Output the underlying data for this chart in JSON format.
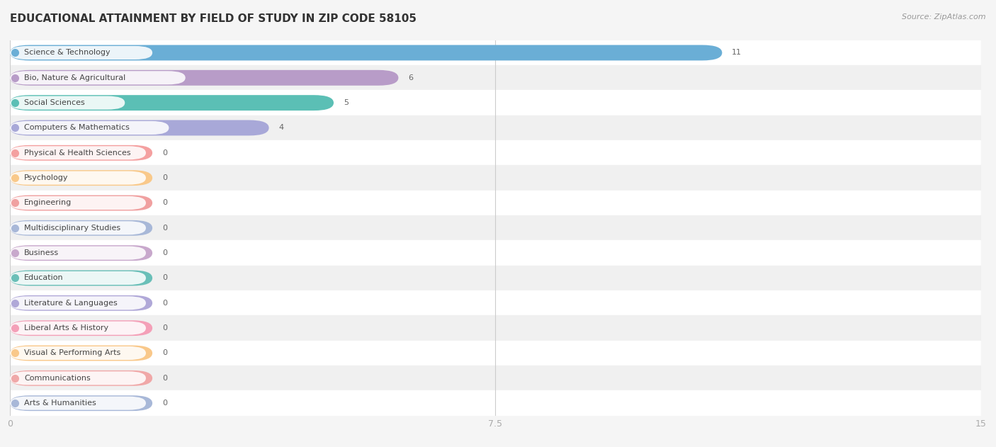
{
  "title": "EDUCATIONAL ATTAINMENT BY FIELD OF STUDY IN ZIP CODE 58105",
  "source": "Source: ZipAtlas.com",
  "categories": [
    "Science & Technology",
    "Bio, Nature & Agricultural",
    "Social Sciences",
    "Computers & Mathematics",
    "Physical & Health Sciences",
    "Psychology",
    "Engineering",
    "Multidisciplinary Studies",
    "Business",
    "Education",
    "Literature & Languages",
    "Liberal Arts & History",
    "Visual & Performing Arts",
    "Communications",
    "Arts & Humanities"
  ],
  "values": [
    11,
    6,
    5,
    4,
    0,
    0,
    0,
    0,
    0,
    0,
    0,
    0,
    0,
    0,
    0
  ],
  "bar_colors": [
    "#6aaed6",
    "#b89cc8",
    "#5bbfb5",
    "#a8a8d8",
    "#f4a0a0",
    "#f9c98a",
    "#f0a0a0",
    "#a8b8d8",
    "#c8a8cc",
    "#6abfb8",
    "#b0a8d8",
    "#f4a0b8",
    "#f9c88a",
    "#f0a8a8",
    "#a8b8d8"
  ],
  "min_bar_width": 2.2,
  "xlim": [
    0,
    15
  ],
  "xticks": [
    0,
    7.5,
    15
  ],
  "row_colors": [
    "#ffffff",
    "#f0f0f0"
  ],
  "background_color": "#f5f5f5",
  "grid_color": "#cccccc",
  "label_color": "#444444",
  "value_color": "#666666",
  "title_color": "#333333",
  "source_color": "#999999",
  "title_fontsize": 11,
  "source_fontsize": 8,
  "label_fontsize": 8,
  "value_fontsize": 8,
  "bar_height": 0.62
}
